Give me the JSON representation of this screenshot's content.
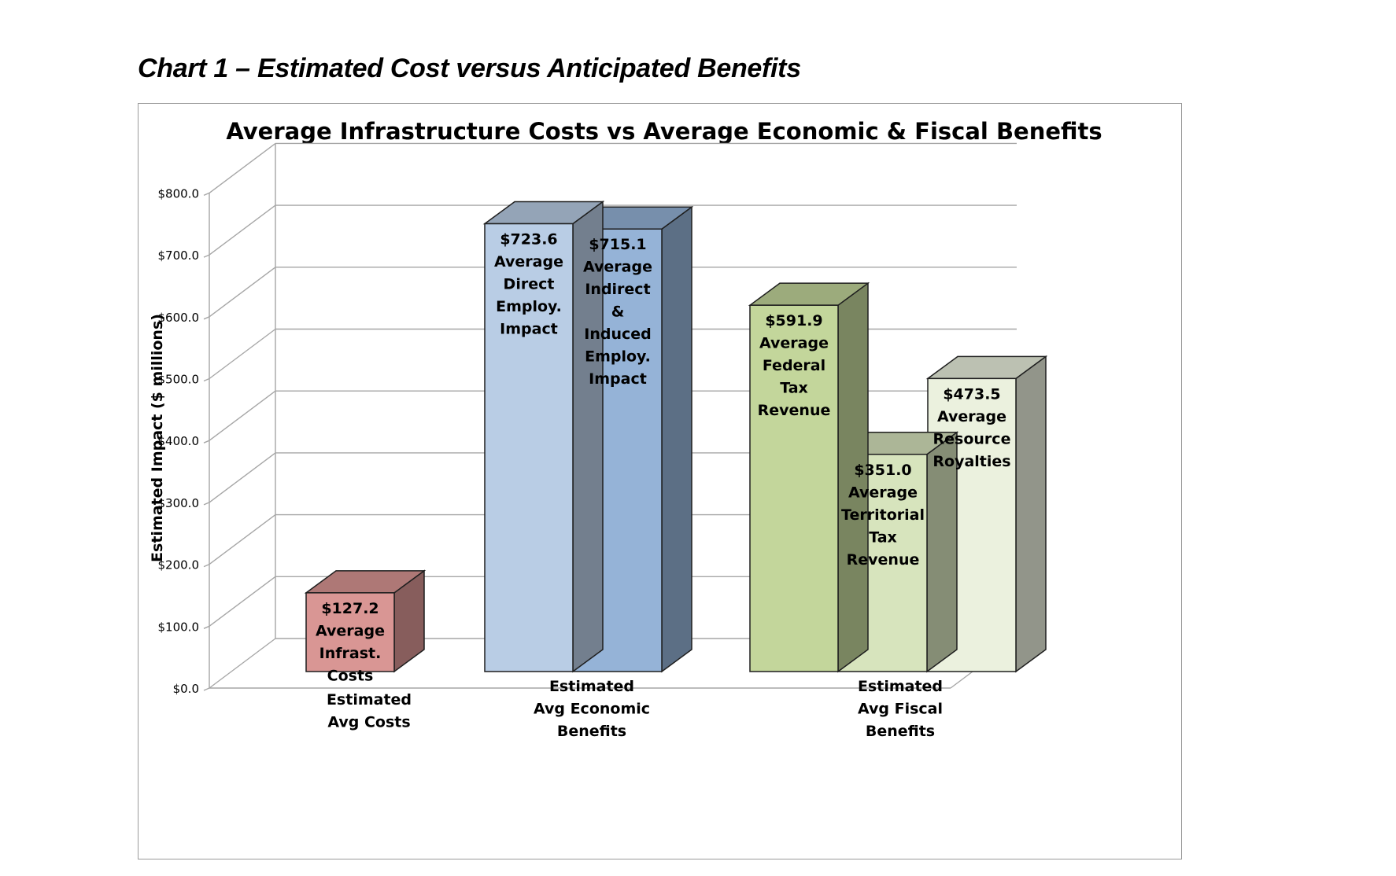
{
  "heading": "Chart 1 – Estimated Cost versus Anticipated Benefits",
  "chart_data": {
    "type": "bar",
    "title": "Average Infrastructure Costs vs Average Economic & Fiscal Benefits",
    "ylabel": "Estimated Impact ($ millions)",
    "xlabel": "",
    "ylim": [
      0,
      800
    ],
    "y_ticks": [
      "$0.0",
      "$100.0",
      "$200.0",
      "$300.0",
      "$400.0",
      "$500.0",
      "$600.0",
      "$700.0",
      "$800.0"
    ],
    "grid": true,
    "three_d": true,
    "categories": [
      {
        "label": [
          "Estimated",
          "Avg Costs"
        ]
      },
      {
        "label": [
          "Estimated",
          "Avg Economic",
          "Benefits"
        ]
      },
      {
        "label": [
          "Estimated",
          "Avg Fiscal",
          "Benefits"
        ]
      }
    ],
    "bars": [
      {
        "category": 0,
        "value": 127.2,
        "label": [
          "$127.2",
          "Average",
          "Infrast.",
          "Costs"
        ],
        "color": "#d99694"
      },
      {
        "category": 1,
        "value": 723.6,
        "label": [
          "$723.6",
          "Average",
          "Direct",
          "Employ.",
          "Impact"
        ],
        "color": "#b9cde5"
      },
      {
        "category": 1,
        "value": 715.1,
        "label": [
          "$715.1",
          "Average",
          "Indirect",
          "&",
          "Induced",
          "Employ.",
          "Impact"
        ],
        "color": "#95b3d7"
      },
      {
        "category": 2,
        "value": 591.9,
        "label": [
          "$591.9",
          "Average",
          "Federal",
          "Tax",
          "Revenue"
        ],
        "color": "#c3d69b"
      },
      {
        "category": 2,
        "value": 351.0,
        "label": [
          "$351.0",
          "Average",
          "Territorial",
          "Tax",
          "Revenue"
        ],
        "color": "#d7e4bd"
      },
      {
        "category": 2,
        "value": 473.5,
        "label": [
          "$473.5",
          "Average",
          "Resource",
          "Royalties"
        ],
        "color": "#ebf1de"
      }
    ]
  }
}
